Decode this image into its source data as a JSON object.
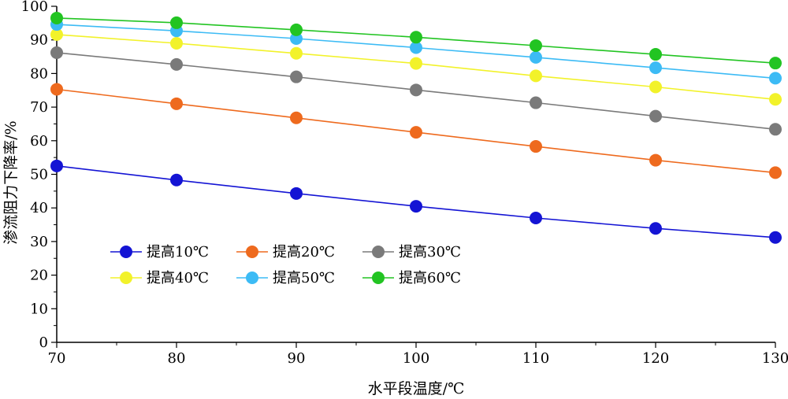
{
  "chart_data": {
    "type": "line",
    "title": "",
    "xlabel": "水平段温度/℃",
    "ylabel": "渗流阻力下降率/%",
    "x": [
      70,
      80,
      90,
      100,
      110,
      120,
      130
    ],
    "xlim": [
      70,
      130
    ],
    "ylim": [
      0,
      100
    ],
    "x_ticks": [
      "70",
      "80",
      "90",
      "100",
      "110",
      "120",
      "130"
    ],
    "y_ticks": [
      "0",
      "10",
      "20",
      "30",
      "40",
      "50",
      "60",
      "70",
      "80",
      "90",
      "100"
    ],
    "grid": false,
    "legend_position": "lower-left",
    "series": [
      {
        "name": "提高10℃",
        "color": "#1414d4",
        "values": [
          52.5,
          48.3,
          44.3,
          40.5,
          37.0,
          33.9,
          31.2
        ]
      },
      {
        "name": "提高20℃",
        "color": "#ee6a1e",
        "values": [
          75.3,
          71.0,
          66.8,
          62.5,
          58.3,
          54.2,
          50.5
        ]
      },
      {
        "name": "提高30℃",
        "color": "#7a7a7a",
        "values": [
          86.2,
          82.7,
          79.0,
          75.1,
          71.3,
          67.3,
          63.4
        ]
      },
      {
        "name": "提高40℃",
        "color": "#f2f22a",
        "values": [
          91.6,
          89.0,
          86.0,
          83.0,
          79.3,
          76.0,
          72.3
        ]
      },
      {
        "name": "提高50℃",
        "color": "#3cbbf5",
        "values": [
          94.6,
          92.7,
          90.4,
          87.7,
          84.8,
          81.7,
          78.6
        ]
      },
      {
        "name": "提高60℃",
        "color": "#22c422",
        "values": [
          96.5,
          95.1,
          93.0,
          90.8,
          88.3,
          85.7,
          83.1
        ]
      }
    ]
  }
}
